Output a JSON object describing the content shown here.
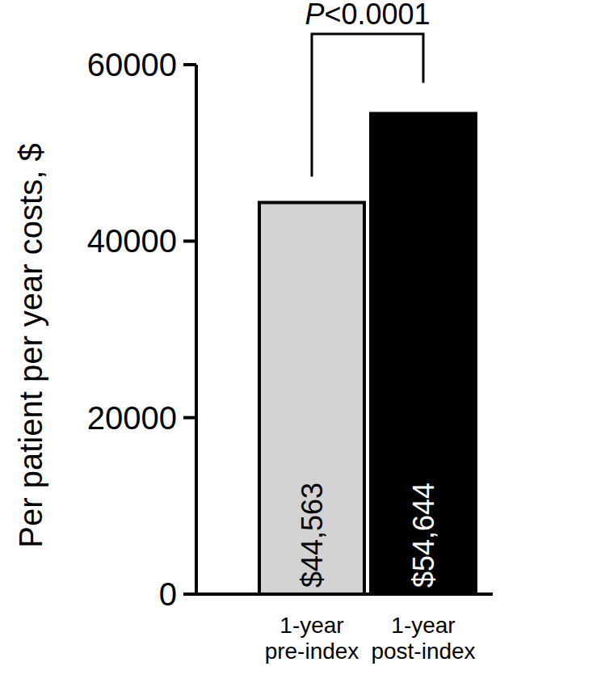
{
  "chart_data": {
    "type": "bar",
    "y_label": "Per patient per year costs, $",
    "annotation": "P<0.0001",
    "categories": [
      "1-year pre-index",
      "1-year post-index"
    ],
    "values": [
      44563,
      54644
    ],
    "value_labels": [
      "$44,563",
      "$54,644"
    ],
    "colors": [
      "#d3d3d3",
      "#000000"
    ],
    "data_labels": true,
    "ylim": [
      0,
      60000
    ],
    "yticks": [
      0,
      20000,
      40000,
      60000
    ],
    "grid": false
  }
}
